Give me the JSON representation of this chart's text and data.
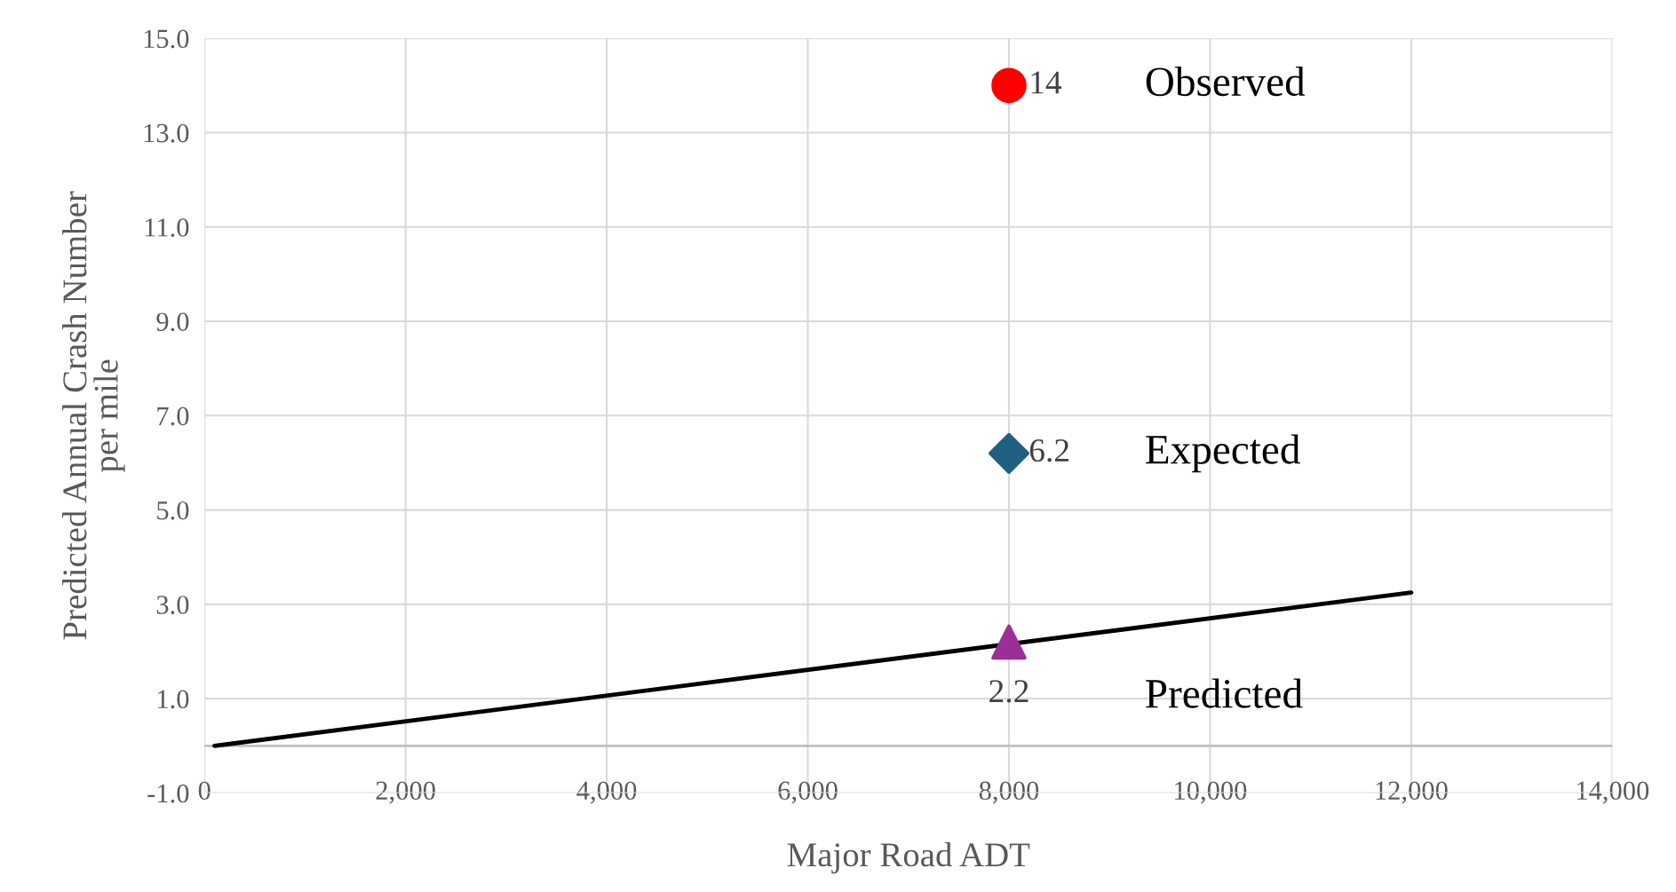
{
  "chart_data": {
    "type": "scatter",
    "xlabel": "Major Road ADT",
    "ylabel": "Predicted Annual Crash Number\nper mile",
    "xlim": [
      0,
      14000
    ],
    "ylim": [
      -1,
      15
    ],
    "xticks": [
      0,
      {
        "value": 2000,
        "label": "2,000"
      },
      {
        "value": 4000,
        "label": "4,000"
      },
      {
        "value": 6000,
        "label": "6,000"
      },
      {
        "value": 8000,
        "label": "8,000"
      },
      {
        "value": 10000,
        "label": "10,000"
      },
      {
        "value": 12000,
        "label": "12,000"
      },
      {
        "value": 14000,
        "label": "14,000"
      }
    ],
    "yticks": [
      {
        "value": -1,
        "label": "-1.0"
      },
      {
        "value": 1,
        "label": "1.0"
      },
      {
        "value": 3,
        "label": "3.0"
      },
      {
        "value": 5,
        "label": "5.0"
      },
      {
        "value": 7,
        "label": "7.0"
      },
      {
        "value": 9,
        "label": "9.0"
      },
      {
        "value": 11,
        "label": "11.0"
      },
      {
        "value": 13,
        "label": "13.0"
      },
      {
        "value": 15,
        "label": "15.0"
      }
    ],
    "grid": true,
    "ref_lines": [
      {
        "axis": "y",
        "value": 0,
        "color": "#bfbfbf"
      }
    ],
    "series": [
      {
        "type": "line",
        "color": "#000000",
        "x": [
          100,
          12000
        ],
        "values": [
          0.0,
          3.25
        ],
        "marker": "none"
      },
      {
        "name": "Observed",
        "color": "#ff0000",
        "x": [
          8000
        ],
        "values": [
          14
        ],
        "value_labels": [
          "14"
        ],
        "marker": "circle"
      },
      {
        "name": "Expected",
        "color": "#1f5f80",
        "x": [
          8000
        ],
        "values": [
          6.2
        ],
        "value_labels": [
          "6.2"
        ],
        "marker": "diamond"
      },
      {
        "name": "Predicted",
        "color": "#9b2f96",
        "x": [
          8000
        ],
        "values": [
          2.2
        ],
        "value_labels": [
          "2.2"
        ],
        "marker": "triangle"
      }
    ]
  }
}
